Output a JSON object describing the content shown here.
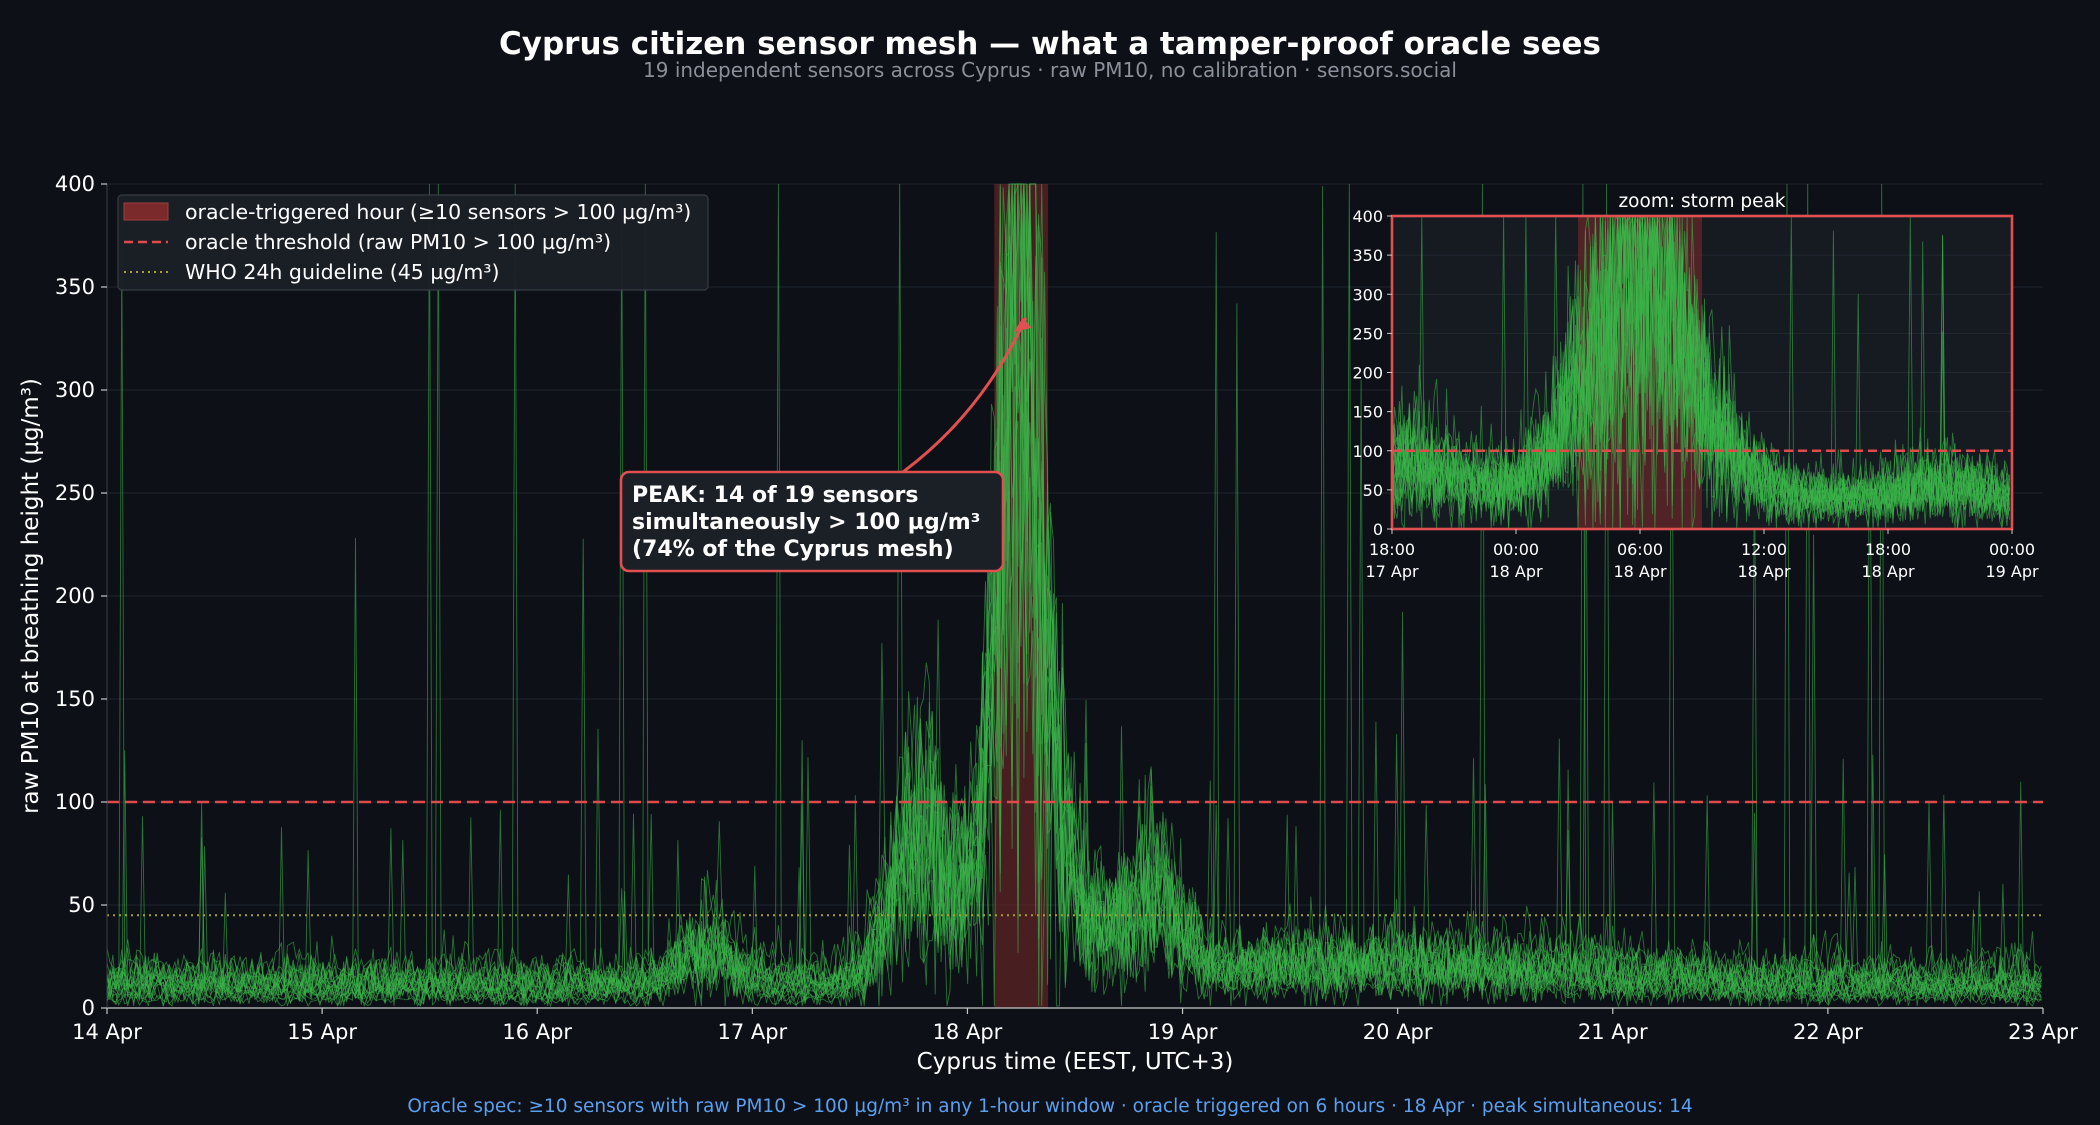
{
  "title": "Cyprus citizen sensor mesh — what a tamper-proof oracle sees",
  "subtitle": "19 independent sensors across Cyprus · raw PM10, no calibration · sensors.social",
  "footer": "Oracle spec: ≥10 sensors with raw PM10 > 100 µg/m³ in any 1-hour window · oracle triggered on 6 hours · 18 Apr · peak simultaneous: 14",
  "colors": {
    "background": "#0d1017",
    "plot_background": "#0d1017",
    "sensor_trace": "#3bb54a",
    "threshold": "#e04a4a",
    "trigger_band": "#7a2a2a",
    "who_line": "#a8a12a",
    "inset_border": "#e05050",
    "annotation_border": "#e05050",
    "footer_text": "#5aa0f0"
  },
  "chart_data": [
    {
      "type": "line",
      "name": "main",
      "xlabel": "Cyprus time (EEST, UTC+3)",
      "ylabel": "raw PM10 at breathing height (µg/m³)",
      "xlim": [
        "2024-04-14 00:00",
        "2024-04-23 00:00"
      ],
      "ylim": [
        0,
        400
      ],
      "x_ticks": [
        "14 Apr",
        "15 Apr",
        "16 Apr",
        "17 Apr",
        "18 Apr",
        "19 Apr",
        "20 Apr",
        "21 Apr",
        "22 Apr",
        "23 Apr"
      ],
      "y_ticks": [
        0,
        50,
        100,
        150,
        200,
        250,
        300,
        350,
        400
      ],
      "grid": true,
      "sensor_count": 19,
      "threshold": 100,
      "who_guideline": 45,
      "trigger_window": [
        "2024-04-18 03:00",
        "2024-04-18 09:00"
      ],
      "legend_position": "top-left",
      "legend": [
        "oracle-triggered hour (≥10 sensors > 100 µg/m³)",
        "oracle threshold (raw PM10 > 100 µg/m³)",
        "WHO 24h guideline (45 µg/m³)"
      ],
      "annotation": {
        "lines": [
          "PEAK: 14 of 19 sensors",
          "simultaneously > 100 µg/m³",
          "(74% of the Cyprus mesh)"
        ],
        "points_to": [
          "2024-04-18 06:30",
          335
        ]
      },
      "series_profile": {
        "baseline_range": [
          3,
          30
        ],
        "storm_peak": {
          "time": "2024-04-18 06:00",
          "value": 400
        },
        "secondary_bumps": [
          {
            "time": "2024-04-17 18:00",
            "value": 150
          },
          {
            "time": "2024-04-18 21:00",
            "value": 90
          },
          {
            "time": "2024-04-16 19:00",
            "value": 45
          }
        ]
      }
    },
    {
      "type": "line",
      "name": "inset",
      "title": "zoom: storm peak",
      "xlim": [
        "2024-04-17 18:00",
        "2024-04-19 00:00"
      ],
      "ylim": [
        0,
        400
      ],
      "x_ticks": [
        {
          "time": "18:00",
          "date": "17 Apr"
        },
        {
          "time": "00:00",
          "date": "18 Apr"
        },
        {
          "time": "06:00",
          "date": "18 Apr"
        },
        {
          "time": "12:00",
          "date": "18 Apr"
        },
        {
          "time": "18:00",
          "date": "18 Apr"
        },
        {
          "time": "00:00",
          "date": "19 Apr"
        }
      ],
      "y_ticks": [
        0,
        50,
        100,
        150,
        200,
        250,
        300,
        350,
        400
      ],
      "threshold": 100,
      "trigger_window": [
        "2024-04-18 03:00",
        "2024-04-18 09:00"
      ]
    }
  ]
}
